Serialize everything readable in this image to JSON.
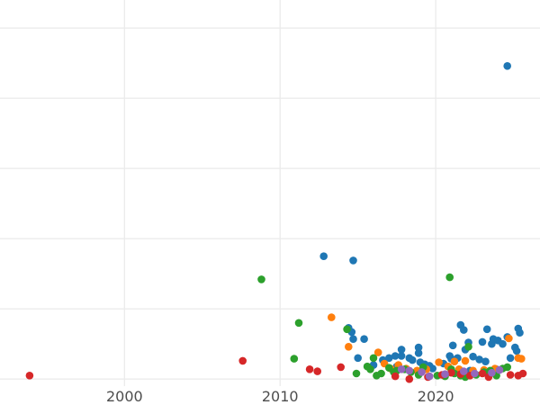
{
  "chart_data": {
    "type": "scatter",
    "title": "",
    "xlabel": "",
    "ylabel": "",
    "xlim": [
      1992,
      2026.7
    ],
    "ylim": [
      -10,
      540
    ],
    "xticks": [
      2000,
      2010,
      2020
    ],
    "xtick_labels": [
      "2000",
      "2010",
      "2020"
    ],
    "yticks": [
      0,
      100,
      200,
      300,
      400,
      500
    ],
    "grid": true,
    "legend": false,
    "series": [
      {
        "color": "#1f77b4",
        "points": [
          [
            2024.6,
            446
          ],
          [
            2012.8,
            175
          ],
          [
            2014.7,
            169
          ],
          [
            2014.4,
            73
          ],
          [
            2014.6,
            67
          ],
          [
            2014.7,
            57
          ],
          [
            2015.4,
            57
          ],
          [
            2015.0,
            30
          ],
          [
            2016.6,
            27
          ],
          [
            2017.0,
            30
          ],
          [
            2017.4,
            33
          ],
          [
            2017.8,
            33
          ],
          [
            2017.8,
            42
          ],
          [
            2018.3,
            30
          ],
          [
            2018.5,
            27
          ],
          [
            2018.9,
            37
          ],
          [
            2018.9,
            45
          ],
          [
            2019.0,
            24
          ],
          [
            2019.3,
            21
          ],
          [
            2019.6,
            19
          ],
          [
            2020.5,
            22
          ],
          [
            2020.9,
            33
          ],
          [
            2021.0,
            29
          ],
          [
            2021.1,
            48
          ],
          [
            2021.4,
            30
          ],
          [
            2021.6,
            77
          ],
          [
            2021.8,
            70
          ],
          [
            2021.9,
            42
          ],
          [
            2022.1,
            52
          ],
          [
            2022.4,
            32
          ],
          [
            2022.8,
            28
          ],
          [
            2023.0,
            53
          ],
          [
            2023.2,
            25
          ],
          [
            2023.3,
            71
          ],
          [
            2023.6,
            50
          ],
          [
            2023.7,
            57
          ],
          [
            2024.0,
            55
          ],
          [
            2024.3,
            50
          ],
          [
            2024.6,
            60
          ],
          [
            2024.8,
            30
          ],
          [
            2025.1,
            45
          ],
          [
            2025.2,
            40
          ],
          [
            2025.3,
            72
          ],
          [
            2025.4,
            66
          ],
          [
            2016.0,
            20
          ],
          [
            2017.5,
            18
          ],
          [
            2019.8,
            15
          ],
          [
            2022.2,
            12
          ],
          [
            2023.9,
            14
          ]
        ]
      },
      {
        "color": "#ff7f0e",
        "points": [
          [
            2013.3,
            88
          ],
          [
            2014.4,
            46
          ],
          [
            2016.3,
            38
          ],
          [
            2016.7,
            22
          ],
          [
            2017.1,
            15
          ],
          [
            2017.6,
            20
          ],
          [
            2018.1,
            15
          ],
          [
            2018.8,
            12
          ],
          [
            2019.4,
            14
          ],
          [
            2020.2,
            24
          ],
          [
            2020.8,
            18
          ],
          [
            2021.2,
            25
          ],
          [
            2021.5,
            14
          ],
          [
            2021.9,
            26
          ],
          [
            2022.4,
            12
          ],
          [
            2023.1,
            13
          ],
          [
            2023.8,
            15
          ],
          [
            2024.7,
            58
          ],
          [
            2025.3,
            30
          ],
          [
            2025.5,
            29
          ]
        ]
      },
      {
        "color": "#2ca02c",
        "points": [
          [
            2008.8,
            142
          ],
          [
            2011.2,
            80
          ],
          [
            2010.9,
            29
          ],
          [
            2014.3,
            71
          ],
          [
            2014.9,
            8
          ],
          [
            2015.6,
            18
          ],
          [
            2015.8,
            14
          ],
          [
            2016.0,
            30
          ],
          [
            2016.2,
            5
          ],
          [
            2016.5,
            8
          ],
          [
            2017.0,
            16
          ],
          [
            2017.3,
            10
          ],
          [
            2017.5,
            12
          ],
          [
            2018.0,
            14
          ],
          [
            2018.4,
            10
          ],
          [
            2018.9,
            6
          ],
          [
            2019.2,
            17
          ],
          [
            2020.1,
            5
          ],
          [
            2020.6,
            4
          ],
          [
            2020.9,
            145
          ],
          [
            2021.2,
            8
          ],
          [
            2021.6,
            5
          ],
          [
            2021.9,
            3
          ],
          [
            2022.1,
            46
          ],
          [
            2022.6,
            6
          ],
          [
            2023.1,
            10
          ],
          [
            2023.5,
            12
          ],
          [
            2023.9,
            5
          ],
          [
            2024.3,
            15
          ],
          [
            2024.6,
            17
          ],
          [
            2021.0,
            14
          ]
        ]
      },
      {
        "color": "#d62728",
        "points": [
          [
            1993.9,
            5
          ],
          [
            2007.6,
            26
          ],
          [
            2011.9,
            14
          ],
          [
            2012.4,
            11
          ],
          [
            2013.9,
            17
          ],
          [
            2017.4,
            4
          ],
          [
            2018.3,
            0
          ],
          [
            2019.5,
            3
          ],
          [
            2020.4,
            6
          ],
          [
            2021.0,
            9
          ],
          [
            2021.6,
            7
          ],
          [
            2022.2,
            5
          ],
          [
            2023.0,
            8
          ],
          [
            2023.4,
            3
          ],
          [
            2024.8,
            6
          ],
          [
            2025.3,
            5
          ],
          [
            2025.6,
            8
          ]
        ]
      },
      {
        "color": "#9467bd",
        "points": [
          [
            2017.8,
            14
          ],
          [
            2018.3,
            12
          ],
          [
            2019.1,
            10
          ],
          [
            2019.6,
            4
          ],
          [
            2020.6,
            7
          ],
          [
            2021.8,
            11
          ],
          [
            2022.5,
            8
          ],
          [
            2023.6,
            9
          ],
          [
            2024.1,
            13
          ]
        ]
      }
    ]
  }
}
